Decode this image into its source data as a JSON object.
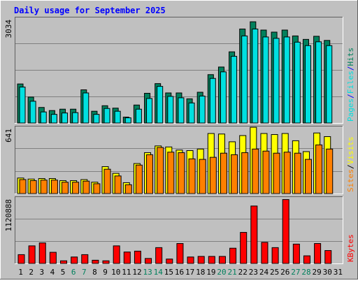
{
  "title": "Daily usage for September 2025",
  "colors": {
    "background": "#c0c0c0",
    "title_text": "#0000ff",
    "hits": "#00805c",
    "files": "#00e0e0",
    "pages": "#0000c0",
    "visits": "#ffff00",
    "sites": "#ff8000",
    "kbytes": "#ff0000",
    "weekend_label": "#00805c",
    "weekday_label": "#000000"
  },
  "chart_data": [
    {
      "type": "bar",
      "name": "pages-files-hits",
      "ytick_label": "3034",
      "ymax": 3034,
      "legend": [
        "Pages",
        "/",
        "Files",
        "/",
        "Hits"
      ],
      "categories": [
        "1",
        "2",
        "3",
        "4",
        "5",
        "6",
        "7",
        "8",
        "9",
        "10",
        "11",
        "12",
        "13",
        "14",
        "15",
        "16",
        "17",
        "18",
        "19",
        "20",
        "21",
        "22",
        "23",
        "24",
        "25",
        "26",
        "27",
        "28",
        "29",
        "30",
        "31"
      ],
      "series": [
        {
          "name": "Hits",
          "values": [
            1130,
            750,
            450,
            360,
            400,
            400,
            960,
            340,
            500,
            430,
            170,
            520,
            860,
            1140,
            870,
            870,
            700,
            890,
            1400,
            1620,
            2060,
            2720,
            2930,
            2690,
            2630,
            2690,
            2520,
            2420,
            2510,
            2390,
            0
          ]
        },
        {
          "name": "Files",
          "values": [
            1040,
            630,
            320,
            250,
            290,
            300,
            870,
            250,
            420,
            340,
            150,
            400,
            710,
            1060,
            770,
            730,
            580,
            780,
            1290,
            1480,
            1930,
            2520,
            2720,
            2490,
            2450,
            2490,
            2340,
            2240,
            2350,
            2240,
            0
          ]
        },
        {
          "name": "Pages",
          "values": [
            0,
            0,
            0,
            0,
            0,
            0,
            0,
            0,
            0,
            0,
            0,
            0,
            0,
            0,
            0,
            0,
            0,
            0,
            0,
            0,
            0,
            0,
            0,
            0,
            0,
            0,
            0,
            0,
            0,
            0,
            0
          ]
        }
      ]
    },
    {
      "type": "bar",
      "name": "sites-visits",
      "ytick_label": "641",
      "ymax": 641,
      "legend": [
        "Sites",
        "/",
        "Visits"
      ],
      "categories": [
        "1",
        "2",
        "3",
        "4",
        "5",
        "6",
        "7",
        "8",
        "9",
        "10",
        "11",
        "12",
        "13",
        "14",
        "15",
        "16",
        "17",
        "18",
        "19",
        "20",
        "21",
        "22",
        "23",
        "24",
        "25",
        "26",
        "27",
        "28",
        "29",
        "30",
        "31"
      ],
      "series": [
        {
          "name": "Visits",
          "values": [
            150,
            140,
            145,
            145,
            125,
            125,
            135,
            110,
            260,
            195,
            105,
            290,
            395,
            460,
            450,
            420,
            415,
            430,
            580,
            575,
            500,
            560,
            640,
            580,
            570,
            580,
            510,
            405,
            585,
            550,
            0
          ]
        },
        {
          "name": "Sites",
          "values": [
            135,
            125,
            130,
            130,
            110,
            110,
            120,
            95,
            235,
            170,
            85,
            275,
            375,
            445,
            400,
            395,
            335,
            330,
            350,
            390,
            375,
            395,
            430,
            410,
            390,
            400,
            390,
            330,
            470,
            430,
            0
          ]
        }
      ]
    },
    {
      "type": "bar",
      "name": "kbytes",
      "ytick_label": "1120888",
      "ymax": 1120888,
      "legend": [
        "KBytes"
      ],
      "categories": [
        "1",
        "2",
        "3",
        "4",
        "5",
        "6",
        "7",
        "8",
        "9",
        "10",
        "11",
        "12",
        "13",
        "14",
        "15",
        "16",
        "17",
        "18",
        "19",
        "20",
        "21",
        "22",
        "23",
        "24",
        "25",
        "26",
        "27",
        "28",
        "29",
        "30",
        "31"
      ],
      "series": [
        {
          "name": "KBytes",
          "values": [
            150000,
            300000,
            350000,
            190000,
            45000,
            110000,
            150000,
            55000,
            45000,
            300000,
            195000,
            210000,
            85000,
            270000,
            75000,
            340000,
            110000,
            120000,
            120000,
            120000,
            260000,
            530000,
            980000,
            360000,
            270000,
            1090000,
            330000,
            130000,
            340000,
            220000,
            0
          ]
        }
      ]
    }
  ],
  "x_labels": [
    "1",
    "2",
    "3",
    "4",
    "5",
    "6",
    "7",
    "8",
    "9",
    "10",
    "11",
    "12",
    "13",
    "14",
    "15",
    "16",
    "17",
    "18",
    "19",
    "20",
    "21",
    "22",
    "23",
    "24",
    "25",
    "26",
    "27",
    "28",
    "29",
    "30",
    "31"
  ],
  "weekend_days": [
    6,
    7,
    13,
    14,
    20,
    21,
    27,
    28
  ]
}
